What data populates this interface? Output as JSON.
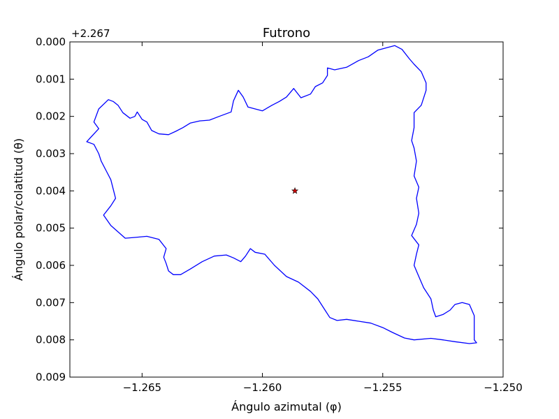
{
  "chart_data": {
    "type": "line",
    "title": "Futrono",
    "xlabel": "Ángulo azimutal (φ)",
    "ylabel": "Ángulo polar/colatitud (θ)",
    "y_offset_label": "+2.267",
    "xlim": [
      -1.268,
      -1.25
    ],
    "ylim": [
      0.009,
      0.0
    ],
    "y_inverted": true,
    "grid": false,
    "x_ticks": [
      -1.265,
      -1.26,
      -1.255,
      -1.25
    ],
    "x_tick_labels": [
      "−1.265",
      "−1.260",
      "−1.255",
      "−1.250"
    ],
    "y_ticks": [
      0.0,
      0.001,
      0.002,
      0.003,
      0.004,
      0.005,
      0.006,
      0.007,
      0.008,
      0.009
    ],
    "y_tick_labels": [
      "0.000",
      "0.001",
      "0.002",
      "0.003",
      "0.004",
      "0.005",
      "0.006",
      "0.007",
      "0.008",
      "0.009"
    ],
    "series": [
      {
        "color": "#0000ff",
        "closed": true,
        "points": [
          [
            -1.2673,
            0.00268
          ],
          [
            -1.2668,
            0.00233
          ],
          [
            -1.267,
            0.00215
          ],
          [
            -1.2668,
            0.0018
          ],
          [
            -1.2664,
            0.00155
          ],
          [
            -1.2662,
            0.0016
          ],
          [
            -1.266,
            0.0017
          ],
          [
            -1.2658,
            0.0019
          ],
          [
            -1.2655,
            0.00205
          ],
          [
            -1.2653,
            0.002
          ],
          [
            -1.2652,
            0.00188
          ],
          [
            -1.265,
            0.00208
          ],
          [
            -1.2648,
            0.00215
          ],
          [
            -1.2646,
            0.00238
          ],
          [
            -1.2643,
            0.00247
          ],
          [
            -1.2639,
            0.00249
          ],
          [
            -1.2636,
            0.0024
          ],
          [
            -1.2633,
            0.0023
          ],
          [
            -1.263,
            0.00218
          ],
          [
            -1.2626,
            0.00212
          ],
          [
            -1.2622,
            0.0021
          ],
          [
            -1.2618,
            0.002
          ],
          [
            -1.2613,
            0.00188
          ],
          [
            -1.2612,
            0.00158
          ],
          [
            -1.261,
            0.0013
          ],
          [
            -1.2608,
            0.00148
          ],
          [
            -1.2606,
            0.00175
          ],
          [
            -1.2603,
            0.0018
          ],
          [
            -1.26,
            0.00185
          ],
          [
            -1.2596,
            0.0017
          ],
          [
            -1.2593,
            0.0016
          ],
          [
            -1.259,
            0.00148
          ],
          [
            -1.2587,
            0.00125
          ],
          [
            -1.2584,
            0.0015
          ],
          [
            -1.258,
            0.0014
          ],
          [
            -1.2578,
            0.0012
          ],
          [
            -1.2575,
            0.0011
          ],
          [
            -1.2573,
            0.0009
          ],
          [
            -1.2573,
            0.0007
          ],
          [
            -1.257,
            0.00075
          ],
          [
            -1.2565,
            0.00068
          ],
          [
            -1.256,
            0.0005
          ],
          [
            -1.2556,
            0.0004
          ],
          [
            -1.2552,
            0.00022
          ],
          [
            -1.2548,
            0.00015
          ],
          [
            -1.2545,
            0.0001
          ],
          [
            -1.2542,
            0.0002
          ],
          [
            -1.2539,
            0.00045
          ],
          [
            -1.2537,
            0.0006
          ],
          [
            -1.2534,
            0.0008
          ],
          [
            -1.2532,
            0.0011
          ],
          [
            -1.2532,
            0.0013
          ],
          [
            -1.2534,
            0.0017
          ],
          [
            -1.2537,
            0.0019
          ],
          [
            -1.2537,
            0.0023
          ],
          [
            -1.2538,
            0.00265
          ],
          [
            -1.2537,
            0.00285
          ],
          [
            -1.2536,
            0.0032
          ],
          [
            -1.2537,
            0.0036
          ],
          [
            -1.2535,
            0.0039
          ],
          [
            -1.2536,
            0.0042
          ],
          [
            -1.2535,
            0.0046
          ],
          [
            -1.2536,
            0.0049
          ],
          [
            -1.2538,
            0.0052
          ],
          [
            -1.2535,
            0.00545
          ],
          [
            -1.2536,
            0.0057
          ],
          [
            -1.2537,
            0.006
          ],
          [
            -1.2535,
            0.0063
          ],
          [
            -1.2533,
            0.0066
          ],
          [
            -1.253,
            0.0069
          ],
          [
            -1.2529,
            0.0072
          ],
          [
            -1.2528,
            0.00738
          ],
          [
            -1.2525,
            0.00732
          ],
          [
            -1.2522,
            0.0072
          ],
          [
            -1.252,
            0.00705
          ],
          [
            -1.2517,
            0.007
          ],
          [
            -1.2514,
            0.00705
          ],
          [
            -1.2512,
            0.00735
          ],
          [
            -1.2512,
            0.0078
          ],
          [
            -1.2512,
            0.008
          ],
          [
            -1.2511,
            0.00808
          ],
          [
            -1.2514,
            0.0081
          ],
          [
            -1.252,
            0.00805
          ],
          [
            -1.2525,
            0.008
          ],
          [
            -1.253,
            0.00796
          ],
          [
            -1.2537,
            0.008
          ],
          [
            -1.2541,
            0.00795
          ],
          [
            -1.2546,
            0.0078
          ],
          [
            -1.255,
            0.00767
          ],
          [
            -1.2555,
            0.00755
          ],
          [
            -1.256,
            0.0075
          ],
          [
            -1.2565,
            0.00745
          ],
          [
            -1.2569,
            0.00748
          ],
          [
            -1.2572,
            0.0074
          ],
          [
            -1.2574,
            0.0072
          ],
          [
            -1.2577,
            0.0069
          ],
          [
            -1.258,
            0.0067
          ],
          [
            -1.2585,
            0.00645
          ],
          [
            -1.259,
            0.0063
          ],
          [
            -1.2595,
            0.006
          ],
          [
            -1.2599,
            0.0057
          ],
          [
            -1.2603,
            0.00565
          ],
          [
            -1.2605,
            0.00555
          ],
          [
            -1.2607,
            0.00575
          ],
          [
            -1.2609,
            0.0059
          ],
          [
            -1.2612,
            0.0058
          ],
          [
            -1.2615,
            0.00572
          ],
          [
            -1.262,
            0.00575
          ],
          [
            -1.2625,
            0.0059
          ],
          [
            -1.263,
            0.0061
          ],
          [
            -1.2634,
            0.00625
          ],
          [
            -1.2637,
            0.00625
          ],
          [
            -1.2639,
            0.00615
          ],
          [
            -1.264,
            0.00595
          ],
          [
            -1.2641,
            0.00578
          ],
          [
            -1.264,
            0.00555
          ],
          [
            -1.2643,
            0.0053
          ],
          [
            -1.2648,
            0.00522
          ],
          [
            -1.2653,
            0.00525
          ],
          [
            -1.2657,
            0.00527
          ],
          [
            -1.266,
            0.0051
          ],
          [
            -1.2663,
            0.00493
          ],
          [
            -1.2666,
            0.00465
          ],
          [
            -1.2663,
            0.0044
          ],
          [
            -1.2661,
            0.0042
          ],
          [
            -1.2662,
            0.00395
          ],
          [
            -1.2663,
            0.0037
          ],
          [
            -1.2665,
            0.00345
          ],
          [
            -1.2667,
            0.0032
          ],
          [
            -1.2668,
            0.003
          ],
          [
            -1.267,
            0.00275
          ],
          [
            -1.2673,
            0.00268
          ]
        ]
      },
      {
        "type": "scatter",
        "marker": "star",
        "color": "#d00000",
        "points": [
          [
            -1.25865,
            0.004
          ]
        ]
      }
    ]
  }
}
